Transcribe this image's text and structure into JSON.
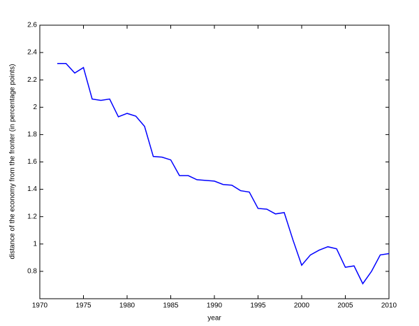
{
  "chart_data": {
    "type": "line",
    "x_label": "year",
    "y_label": "distance of the economy from the fronter (in percentage points)",
    "x": [
      1972,
      1973,
      1974,
      1975,
      1976,
      1977,
      1978,
      1979,
      1980,
      1981,
      1982,
      1983,
      1984,
      1985,
      1986,
      1987,
      1988,
      1989,
      1990,
      1991,
      1992,
      1993,
      1994,
      1995,
      1996,
      1997,
      1998,
      1999,
      2000,
      2001,
      2002,
      2003,
      2004,
      2005,
      2006,
      2007,
      2008,
      2009,
      2010
    ],
    "values": [
      2.32,
      2.32,
      2.25,
      2.29,
      2.06,
      2.05,
      2.06,
      1.93,
      1.955,
      1.935,
      1.86,
      1.64,
      1.635,
      1.615,
      1.5,
      1.5,
      1.47,
      1.465,
      1.46,
      1.435,
      1.43,
      1.39,
      1.38,
      1.26,
      1.255,
      1.22,
      1.23,
      1.03,
      0.845,
      0.92,
      0.955,
      0.98,
      0.965,
      0.83,
      0.84,
      0.71,
      0.8,
      0.92,
      0.93
    ],
    "color": "#0000ff",
    "xlim": [
      1970,
      2010
    ],
    "xticks": [
      1970,
      1975,
      1980,
      1985,
      1990,
      1995,
      2000,
      2005,
      2010
    ],
    "ylim": [
      0.6,
      2.6
    ],
    "yticks": [
      0.8,
      1,
      1.2,
      1.4,
      1.6,
      1.8,
      2,
      2.2,
      2.4,
      2.6
    ],
    "grid": false
  }
}
